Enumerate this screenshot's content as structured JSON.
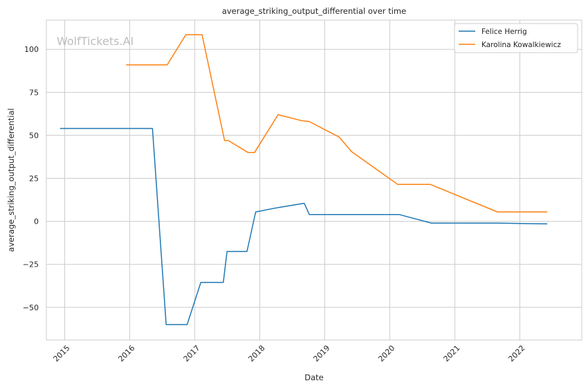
{
  "chart_data": {
    "type": "line",
    "title": "average_striking_output_differential over time",
    "xlabel": "Date",
    "ylabel": "average_striking_output_differential",
    "watermark": "WolfTickets.AI",
    "xlim": [
      "2014-09-20",
      "2022-12-15"
    ],
    "ylim": [
      -69,
      117
    ],
    "xticks": [
      {
        "date": "2015-01-01",
        "label": "2015"
      },
      {
        "date": "2016-01-01",
        "label": "2016"
      },
      {
        "date": "2017-01-01",
        "label": "2017"
      },
      {
        "date": "2018-01-01",
        "label": "2018"
      },
      {
        "date": "2019-01-01",
        "label": "2019"
      },
      {
        "date": "2020-01-01",
        "label": "2020"
      },
      {
        "date": "2021-01-01",
        "label": "2021"
      },
      {
        "date": "2022-01-01",
        "label": "2022"
      }
    ],
    "yticks": [
      {
        "value": 100,
        "label": "100"
      },
      {
        "value": 75,
        "label": "75"
      },
      {
        "value": 50,
        "label": "50"
      },
      {
        "value": 25,
        "label": "25"
      },
      {
        "value": 0,
        "label": "0"
      },
      {
        "value": -25,
        "label": "−25"
      },
      {
        "value": -50,
        "label": "−50"
      }
    ],
    "grid": true,
    "legend_position": "top-right",
    "series": [
      {
        "name": "Felice Herrig",
        "color": "#1f77b4",
        "points": [
          [
            "2014-12-06",
            54
          ],
          [
            "2016-05-08",
            54
          ],
          [
            "2016-07-24",
            -60
          ],
          [
            "2016-11-19",
            -60
          ],
          [
            "2017-02-04",
            -35.5
          ],
          [
            "2017-06-10",
            -35.5
          ],
          [
            "2017-07-01",
            -17.5
          ],
          [
            "2017-10-21",
            -17.5
          ],
          [
            "2017-12-09",
            5.5
          ],
          [
            "2018-04-14",
            8
          ],
          [
            "2018-09-08",
            10.5
          ],
          [
            "2018-10-06",
            4
          ],
          [
            "2020-02-22",
            4
          ],
          [
            "2020-08-22",
            -1
          ],
          [
            "2021-08-28",
            -1
          ],
          [
            "2022-06-04",
            -1.5
          ]
        ]
      },
      {
        "name": "Karolina Kowalkiewicz",
        "color": "#ff7f0e",
        "points": [
          [
            "2015-12-12",
            91
          ],
          [
            "2016-07-30",
            91
          ],
          [
            "2016-11-12",
            108.5
          ],
          [
            "2017-02-11",
            108.5
          ],
          [
            "2017-06-17",
            47
          ],
          [
            "2017-07-08",
            47
          ],
          [
            "2017-10-28",
            40
          ],
          [
            "2017-12-02",
            40
          ],
          [
            "2018-04-14",
            62
          ],
          [
            "2018-08-25",
            58.5
          ],
          [
            "2018-10-06",
            58
          ],
          [
            "2019-03-23",
            49
          ],
          [
            "2019-06-01",
            40.5
          ],
          [
            "2020-02-15",
            21.5
          ],
          [
            "2020-08-15",
            21.5
          ],
          [
            "2021-08-28",
            5.5
          ],
          [
            "2022-06-04",
            5.5
          ]
        ]
      }
    ]
  }
}
